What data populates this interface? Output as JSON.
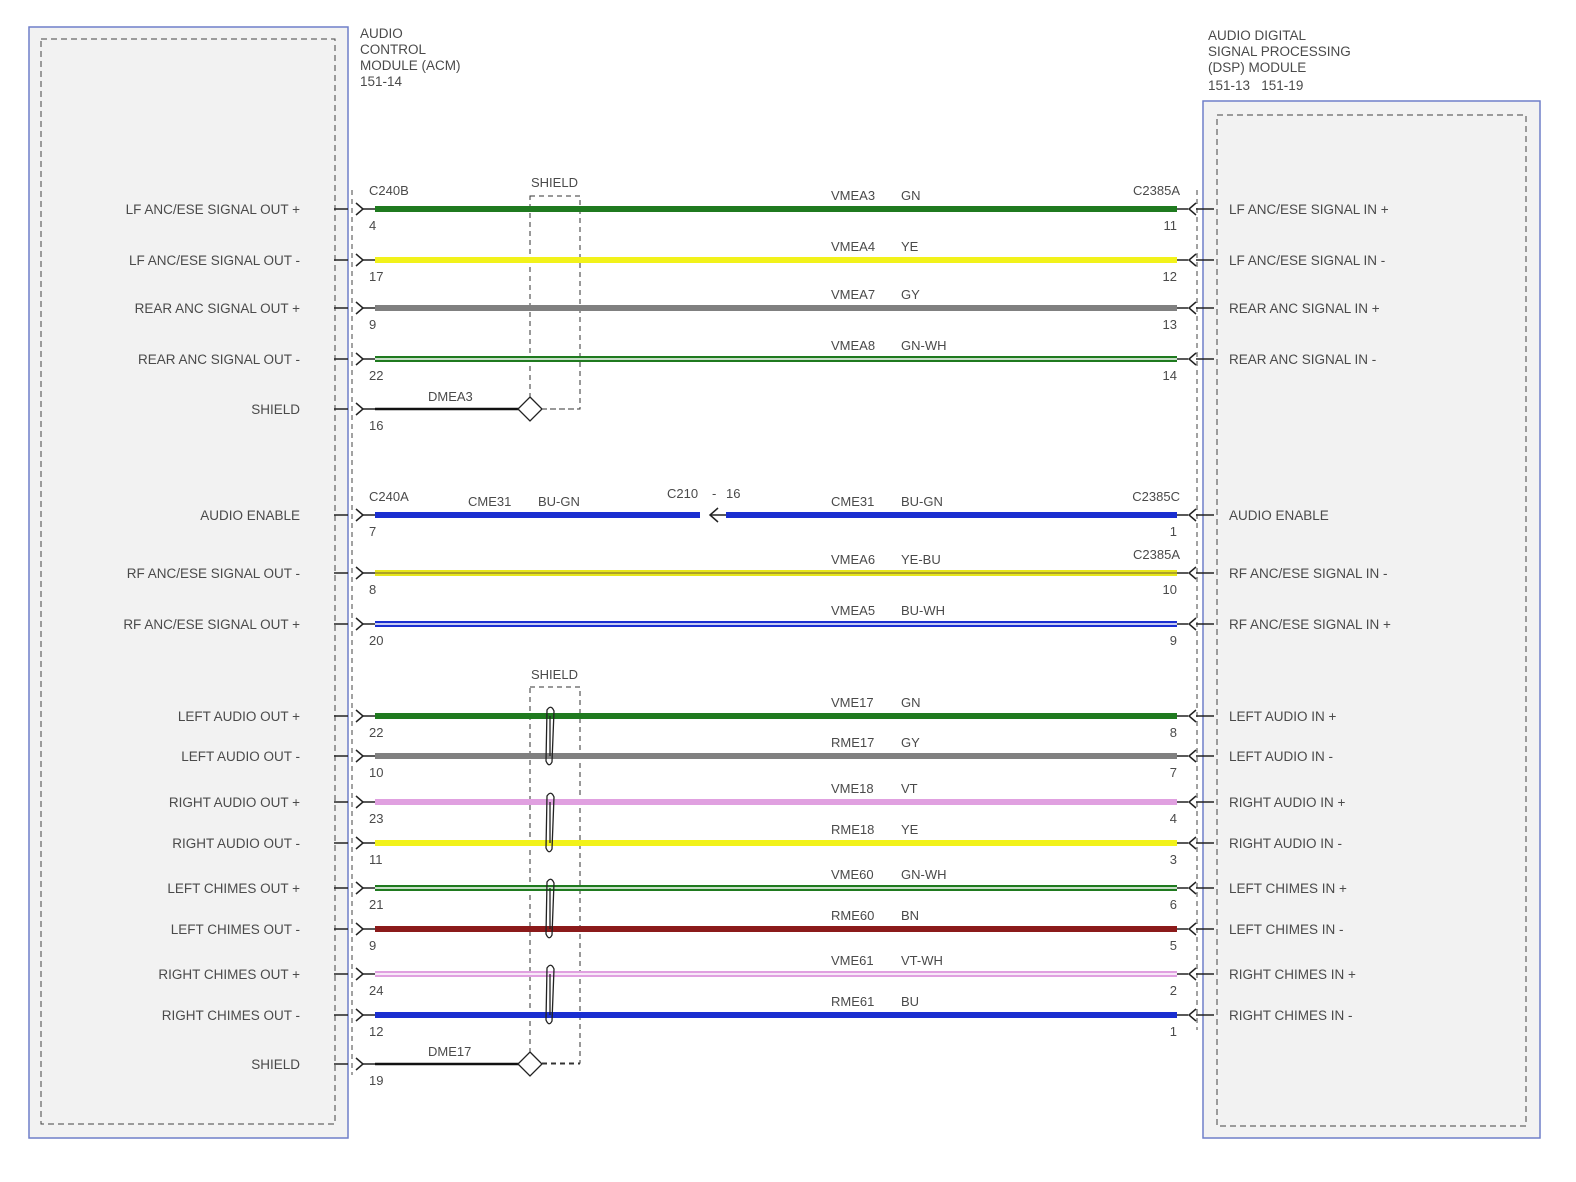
{
  "left_module": {
    "name_lines": [
      "AUDIO",
      "CONTROL",
      "MODULE (ACM)",
      "151-14"
    ]
  },
  "right_module": {
    "name_lines": [
      "AUDIO DIGITAL",
      "SIGNAL PROCESSING",
      "(DSP) MODULE",
      "151-13   151-19"
    ]
  },
  "shield_labels": [
    "SHIELD",
    "SHIELD"
  ],
  "circuits": [
    {
      "left_label": "LF ANC/ESE SIGNAL OUT +",
      "right_label": "LF ANC/ESE SIGNAL IN +",
      "circuit": "VMEA3",
      "color_code": "GN",
      "left_pin": "4",
      "right_pin": "11",
      "left_connector": "C240B",
      "right_connector": "C2385A",
      "colors": [
        "#1f7a1f"
      ]
    },
    {
      "left_label": "LF ANC/ESE SIGNAL OUT -",
      "right_label": "LF ANC/ESE SIGNAL IN -",
      "circuit": "VMEA4",
      "color_code": "YE",
      "left_pin": "17",
      "right_pin": "12",
      "colors": [
        "#f2f21a"
      ]
    },
    {
      "left_label": "REAR ANC SIGNAL OUT +",
      "right_label": "REAR ANC SIGNAL IN +",
      "circuit": "VMEA7",
      "color_code": "GY",
      "left_pin": "9",
      "right_pin": "13",
      "colors": [
        "#808080"
      ]
    },
    {
      "left_label": "REAR ANC SIGNAL OUT -",
      "right_label": "REAR ANC SIGNAL IN -",
      "circuit": "VMEA8",
      "color_code": "GN-WH",
      "left_pin": "22",
      "right_pin": "14",
      "colors": [
        "#1f7a1f",
        "#ffffff"
      ]
    },
    {
      "left_label": "SHIELD",
      "circuit": "DMEA3",
      "left_pin": "16",
      "type": "drain",
      "colors": [
        "#111111"
      ]
    },
    {
      "left_label": "AUDIO ENABLE",
      "right_label": "AUDIO ENABLE",
      "circuit": "CME31",
      "color_code": "BU-GN",
      "left_pin": "7",
      "right_pin": "1",
      "left_connector": "C240A",
      "right_connector": "C2385C",
      "inline_connector": "C210",
      "inline_pin": "16",
      "colors": [
        "#1a2fd0"
      ]
    },
    {
      "left_label": "RF ANC/ESE SIGNAL OUT -",
      "right_label": "RF ANC/ESE SIGNAL IN -",
      "circuit": "VMEA6",
      "color_code": "YE-BU",
      "left_pin": "8",
      "right_pin": "10",
      "right_connector": "C2385A",
      "colors": [
        "#e6e61a",
        "#9a8a2a"
      ]
    },
    {
      "left_label": "RF ANC/ESE SIGNAL OUT +",
      "right_label": "RF ANC/ESE SIGNAL IN +",
      "circuit": "VMEA5",
      "color_code": "BU-WH",
      "left_pin": "20",
      "right_pin": "9",
      "colors": [
        "#1a2fd0",
        "#ffffff"
      ]
    },
    {
      "left_label": "LEFT AUDIO OUT +",
      "right_label": "LEFT AUDIO IN +",
      "circuit": "VME17",
      "color_code": "GN",
      "left_pin": "22",
      "right_pin": "8",
      "colors": [
        "#1f7a1f"
      ]
    },
    {
      "left_label": "LEFT AUDIO OUT -",
      "right_label": "LEFT AUDIO IN -",
      "circuit": "RME17",
      "color_code": "GY",
      "left_pin": "10",
      "right_pin": "7",
      "colors": [
        "#808080"
      ]
    },
    {
      "left_label": "RIGHT AUDIO OUT +",
      "right_label": "RIGHT AUDIO IN +",
      "circuit": "VME18",
      "color_code": "VT",
      "left_pin": "23",
      "right_pin": "4",
      "colors": [
        "#e0a0e0"
      ]
    },
    {
      "left_label": "RIGHT AUDIO OUT -",
      "right_label": "RIGHT AUDIO IN -",
      "circuit": "RME18",
      "color_code": "YE",
      "left_pin": "11",
      "right_pin": "3",
      "colors": [
        "#f2f21a"
      ]
    },
    {
      "left_label": "LEFT CHIMES OUT +",
      "right_label": "LEFT CHIMES IN +",
      "circuit": "VME60",
      "color_code": "GN-WH",
      "left_pin": "21",
      "right_pin": "6",
      "colors": [
        "#1f7a1f",
        "#ffffff"
      ]
    },
    {
      "left_label": "LEFT CHIMES OUT -",
      "right_label": "LEFT CHIMES IN -",
      "circuit": "RME60",
      "color_code": "BN",
      "left_pin": "9",
      "right_pin": "5",
      "colors": [
        "#8b1a1a"
      ]
    },
    {
      "left_label": "RIGHT CHIMES OUT +",
      "right_label": "RIGHT CHIMES IN +",
      "circuit": "VME61",
      "color_code": "VT-WH",
      "left_pin": "24",
      "right_pin": "2",
      "colors": [
        "#e0a0e0",
        "#ffffff"
      ]
    },
    {
      "left_label": "RIGHT CHIMES OUT -",
      "right_label": "RIGHT CHIMES IN -",
      "circuit": "RME61",
      "color_code": "BU",
      "left_pin": "12",
      "right_pin": "1",
      "colors": [
        "#1a2fd0"
      ]
    },
    {
      "left_label": "SHIELD",
      "circuit": "DME17",
      "left_pin": "19",
      "type": "drain",
      "colors": [
        "#111111"
      ]
    }
  ]
}
